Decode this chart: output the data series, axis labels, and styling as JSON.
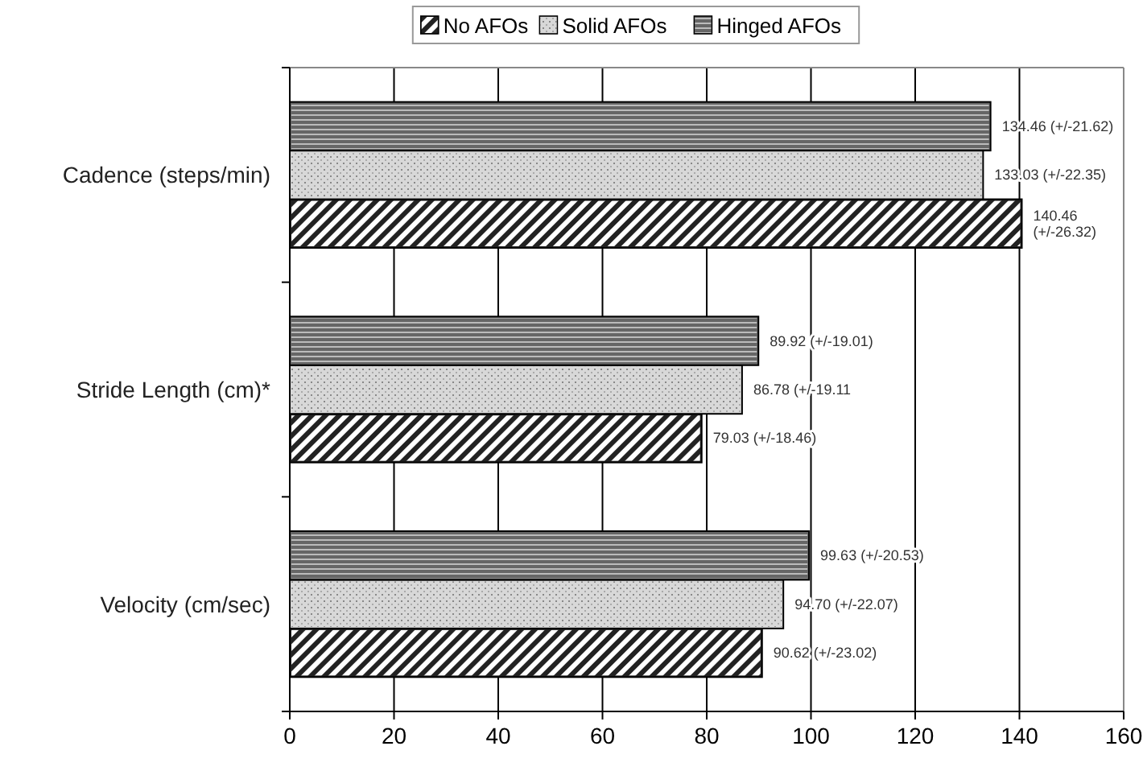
{
  "chart_data": {
    "type": "bar",
    "orientation": "horizontal",
    "categories": [
      "Cadence (steps/min)",
      "Stride Length (cm)*",
      "Velocity (cm/sec)"
    ],
    "series": [
      {
        "name": "No AFOs",
        "color": "#222222",
        "values": [
          140.46,
          79.03,
          90.62
        ],
        "value_labels": [
          "140.46 (+/-26.32)",
          "79.03 (+/-18.46)",
          "90.62 (+/-23.02)"
        ]
      },
      {
        "name": "Solid AFOs",
        "color": "#d8d8d8",
        "values": [
          133.03,
          86.78,
          94.7
        ],
        "value_labels": [
          "133.03 (+/-22.35)",
          "86.78 (+/-19.11",
          "94.70 (+/-22.07)"
        ]
      },
      {
        "name": "Hinged AFOs",
        "color": "#666666",
        "values": [
          134.46,
          89.92,
          99.63
        ],
        "value_labels": [
          "134.46 (+/-21.62)",
          "89.92 (+/-19.01)",
          "99.63 (+/-20.53)"
        ]
      }
    ],
    "xlim": [
      0,
      160
    ],
    "xticks": [
      0,
      20,
      40,
      60,
      80,
      100,
      120,
      140,
      160
    ],
    "grid": "x",
    "legend": "top"
  }
}
